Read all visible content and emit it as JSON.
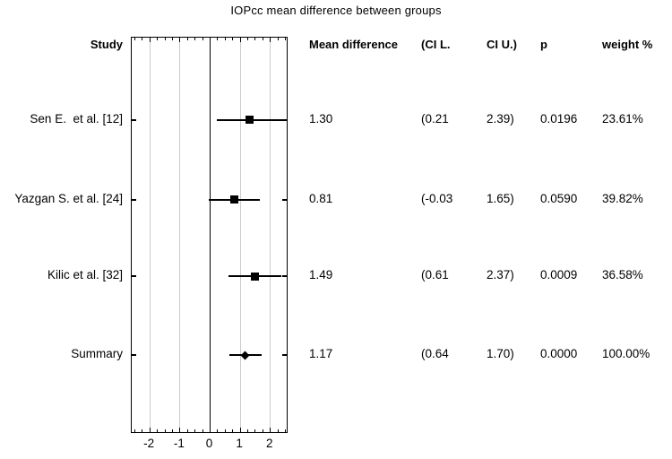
{
  "title": "IOPcc mean difference between groups",
  "columns": {
    "study": "Study",
    "mean": "Mean difference",
    "ci_l": "(CI L.",
    "ci_u": "CI U.)",
    "p": "p",
    "weight": "weight %"
  },
  "colors": {
    "axis": "#000000",
    "gridline": "#cccccc",
    "marker": "#000000",
    "background": "#ffffff"
  },
  "chart_data": {
    "type": "forest",
    "title": "IOPcc mean difference between groups",
    "x_axis": {
      "min": -2.6,
      "max": 2.6,
      "major_ticks": [
        -2,
        -1,
        0,
        1,
        2
      ],
      "major_tick_labels": [
        "-2",
        "-1",
        "0",
        "1",
        "2"
      ],
      "minor_tick_step": 0.25,
      "gridlines": [
        -2,
        -1,
        1,
        2
      ],
      "zero_line": 0,
      "grid": true
    },
    "legend": "none",
    "rows": [
      {
        "study": "Sen E.  et al. [12]",
        "mean": 1.3,
        "ci_lower": 0.21,
        "ci_upper": 2.39,
        "mean_label": "1.30",
        "ci_l_label": "(0.21",
        "ci_u_label": "2.39)",
        "p_label": "0.0196",
        "weight_label": "23.61%",
        "marker": "square"
      },
      {
        "study": "Yazgan S. et al. [24]",
        "mean": 0.81,
        "ci_lower": -0.03,
        "ci_upper": 1.65,
        "mean_label": "0.81",
        "ci_l_label": "(-0.03",
        "ci_u_label": "1.65)",
        "p_label": "0.0590",
        "weight_label": "39.82%",
        "marker": "square"
      },
      {
        "study": "Kilic et al. [32]",
        "mean": 1.49,
        "ci_lower": 0.61,
        "ci_upper": 2.37,
        "mean_label": "1.49",
        "ci_l_label": "(0.61",
        "ci_u_label": "2.37)",
        "p_label": "0.0009",
        "weight_label": "36.58%",
        "marker": "square"
      },
      {
        "study": "Summary",
        "mean": 1.17,
        "ci_lower": 0.64,
        "ci_upper": 1.7,
        "mean_label": "1.17",
        "ci_l_label": "(0.64",
        "ci_u_label": "1.70)",
        "p_label": "0.0000",
        "weight_label": "100.00%",
        "marker": "diamond"
      }
    ]
  }
}
